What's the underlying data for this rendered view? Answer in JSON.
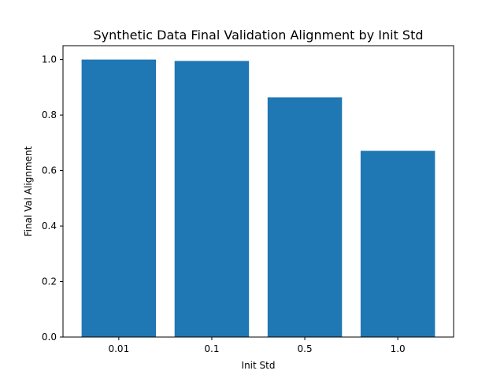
{
  "chart_data": {
    "type": "bar",
    "title": "Synthetic Data Final Validation Alignment by Init Std",
    "xlabel": "Init Std",
    "ylabel": "Final Val Alignment",
    "categories": [
      "0.01",
      "0.1",
      "0.5",
      "1.0"
    ],
    "values": [
      1.0,
      0.995,
      0.864,
      0.671
    ],
    "ylim": [
      0,
      1.05
    ],
    "yticks": [
      0.0,
      0.2,
      0.4,
      0.6,
      0.8,
      1.0
    ],
    "ytick_labels": [
      "0.0",
      "0.2",
      "0.4",
      "0.6",
      "0.8",
      "1.0"
    ],
    "bar_color": "#1f77b4",
    "grid": false,
    "legend": "none"
  }
}
